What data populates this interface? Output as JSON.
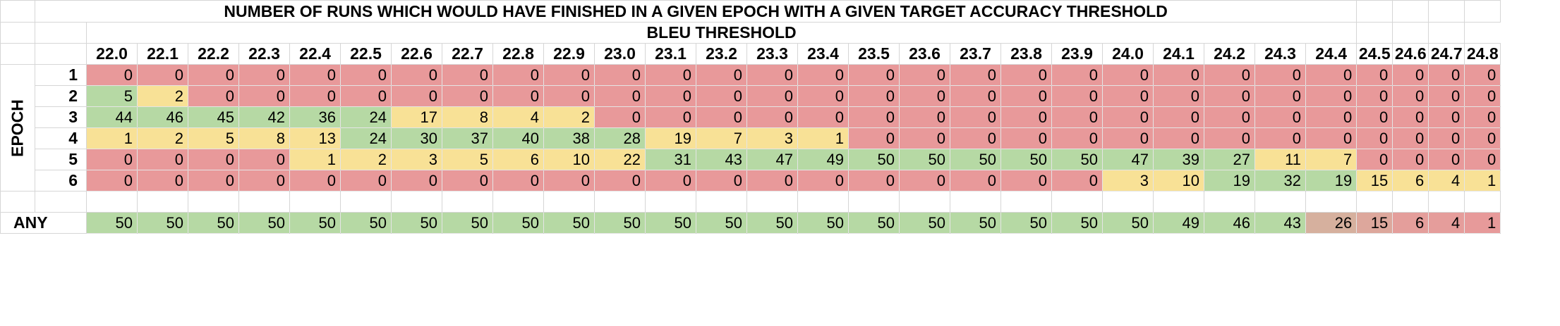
{
  "title": "NUMBER OF RUNS WHICH WOULD HAVE FINISHED IN A GIVEN EPOCH WITH A GIVEN TARGET ACCURACY THRESHOLD",
  "subtitle": "BLEU THRESHOLD",
  "row_group_label": "EPOCH",
  "any_label": "ANY",
  "thresholds": [
    "22.0",
    "22.1",
    "22.2",
    "22.3",
    "22.4",
    "22.5",
    "22.6",
    "22.7",
    "22.8",
    "22.9",
    "23.0",
    "23.1",
    "23.2",
    "23.3",
    "23.4",
    "23.5",
    "23.6",
    "23.7",
    "23.8",
    "23.9",
    "24.0",
    "24.1",
    "24.2",
    "24.3",
    "24.4",
    "24.5",
    "24.6",
    "24.7",
    "24.8"
  ],
  "rows": [
    {
      "epoch": "1",
      "values": [
        0,
        0,
        0,
        0,
        0,
        0,
        0,
        0,
        0,
        0,
        0,
        0,
        0,
        0,
        0,
        0,
        0,
        0,
        0,
        0,
        0,
        0,
        0,
        0,
        0,
        0,
        0,
        0,
        0
      ]
    },
    {
      "epoch": "2",
      "values": [
        5,
        2,
        0,
        0,
        0,
        0,
        0,
        0,
        0,
        0,
        0,
        0,
        0,
        0,
        0,
        0,
        0,
        0,
        0,
        0,
        0,
        0,
        0,
        0,
        0,
        0,
        0,
        0,
        0
      ]
    },
    {
      "epoch": "3",
      "values": [
        44,
        46,
        45,
        42,
        36,
        24,
        17,
        8,
        4,
        2,
        0,
        0,
        0,
        0,
        0,
        0,
        0,
        0,
        0,
        0,
        0,
        0,
        0,
        0,
        0,
        0,
        0,
        0,
        0
      ]
    },
    {
      "epoch": "4",
      "values": [
        1,
        2,
        5,
        8,
        13,
        24,
        30,
        37,
        40,
        38,
        28,
        19,
        7,
        3,
        1,
        0,
        0,
        0,
        0,
        0,
        0,
        0,
        0,
        0,
        0,
        0,
        0,
        0,
        0
      ]
    },
    {
      "epoch": "5",
      "values": [
        0,
        0,
        0,
        0,
        1,
        2,
        3,
        5,
        6,
        10,
        22,
        31,
        43,
        47,
        49,
        50,
        50,
        50,
        50,
        50,
        47,
        39,
        27,
        11,
        7,
        0,
        0,
        0,
        0
      ]
    },
    {
      "epoch": "6",
      "values": [
        0,
        0,
        0,
        0,
        0,
        0,
        0,
        0,
        0,
        0,
        0,
        0,
        0,
        0,
        0,
        0,
        0,
        0,
        0,
        0,
        3,
        10,
        19,
        32,
        19,
        15,
        6,
        4,
        1
      ]
    }
  ],
  "any_values": [
    50,
    50,
    50,
    50,
    50,
    50,
    50,
    50,
    50,
    50,
    50,
    50,
    50,
    50,
    50,
    50,
    50,
    50,
    50,
    50,
    50,
    49,
    46,
    43,
    26,
    15,
    6,
    4,
    1
  ],
  "colors": {
    "zero": "#e8999a",
    "low": "#f8e196",
    "high": "#b6d9a4",
    "grid": "#d6d6d6"
  }
}
